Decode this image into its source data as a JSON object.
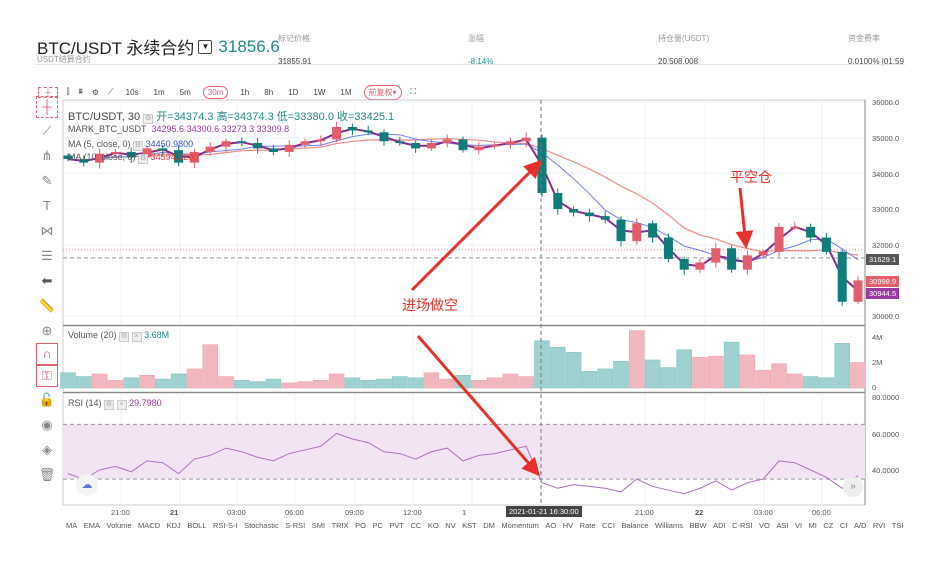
{
  "header": {
    "symbol": "BTC/USDT 永续合约",
    "last_price": "31856.6",
    "subtitle": "USDT结算合约",
    "stats": [
      {
        "label": "标记价格",
        "value": "31855.91"
      },
      {
        "label": "涨幅",
        "value": "-8.14%"
      },
      {
        "label": "持仓量(USDT)",
        "value": "20,508,008"
      },
      {
        "label": "资金费率",
        "value": "0.0100% |01:59"
      }
    ]
  },
  "toolbar": {
    "timeframes": [
      "10s",
      "1m",
      "5m",
      "30m",
      "1h",
      "8h",
      "1D",
      "1W",
      "1M"
    ],
    "active": "30m",
    "adjust": "前复权▾"
  },
  "legend": {
    "symbol": "BTC/USDT, 30",
    "ohlc": "开=34374.3  高=34374.3  低=33380.0  收=33425.1",
    "mark": "MARK_BTC_USDT",
    "mark_vals": "34295.6  34300.6  33273.3  33309.8",
    "ma5": "MA (5, close, 0)",
    "ma5_val": "34450.9800",
    "ma10": "MA (10, close, 0)",
    "ma10_val": "34594.3200",
    "volume": "Volume (20)",
    "volume_val": "3.68M",
    "rsi": "RSI (14)",
    "rsi_val": "29.7980"
  },
  "price_axis": [
    "36000.0",
    "35000.0",
    "34000.0",
    "33000.0",
    "32000.0",
    "30000.0"
  ],
  "price_labels": {
    "mark": "31629.1",
    "last": "30998.9",
    "ma": "30944.5"
  },
  "volume_axis": [
    "4M",
    "2M",
    "0"
  ],
  "rsi_axis": [
    "80.0000",
    "60.0000",
    "40.0000"
  ],
  "time_axis": [
    "21:00",
    "21",
    "03:00",
    "06:00",
    "09:00",
    "12:00",
    "1",
    "21:00",
    "22",
    "03:00",
    "06:00"
  ],
  "crosshair_time": "2021-01-21 16:30:00",
  "annotations": {
    "entry": "进场做空",
    "exit": "平空仓"
  },
  "indicators": [
    "MA",
    "EMA",
    "Volume",
    "MACD",
    "KDJ",
    "BOLL",
    "RSI-S-I",
    "Stochastic",
    "S-RSI",
    "SMI",
    "TRIX",
    "PO",
    "PC",
    "PVT",
    "CC",
    "KO",
    "NV",
    "KST",
    "DM",
    "Momentum",
    "AO",
    "HV",
    "Rate",
    "CCI",
    "Balance",
    "Williams",
    "BBW",
    "ADI",
    "C-RSI",
    "VO",
    "ASI",
    "VI",
    "MI",
    "CZ",
    "CI",
    "A/D",
    "RVI",
    "TSI"
  ],
  "colors": {
    "up": "#e35d6a",
    "down": "#0e7c78",
    "vol_up": "#f2b6be",
    "vol_down": "#9fd1d1",
    "mark_line": "#8a2a90",
    "ma5": "#6d7ef0",
    "ma10": "#f08a8a",
    "rsi": "#b070c0",
    "accent": "#1f8a8a"
  },
  "chart_data": {
    "type": "candlestick",
    "closes": [
      34400,
      34300,
      34550,
      34600,
      34450,
      34700,
      34650,
      34300,
      34600,
      34750,
      34900,
      34850,
      34700,
      34600,
      34800,
      34900,
      34950,
      35300,
      35200,
      35150,
      34900,
      34850,
      34700,
      34850,
      34950,
      34650,
      34750,
      34800,
      34900,
      35000,
      33450,
      33000,
      32900,
      32800,
      32700,
      32100,
      32600,
      32200,
      31600,
      31300,
      31500,
      31900,
      31300,
      31700,
      31800,
      32500,
      32500,
      32200,
      31800,
      30400,
      31000
    ],
    "volumes_m": [
      1.2,
      0.9,
      1.1,
      0.6,
      0.8,
      1.0,
      0.7,
      1.1,
      1.5,
      3.4,
      0.9,
      0.6,
      0.5,
      0.7,
      0.4,
      0.5,
      0.6,
      1.1,
      0.8,
      0.6,
      0.7,
      0.9,
      0.8,
      1.2,
      0.7,
      1.0,
      0.6,
      0.8,
      1.1,
      0.9,
      3.7,
      3.2,
      2.8,
      1.3,
      1.5,
      2.1,
      4.5,
      2.2,
      1.6,
      3.0,
      2.4,
      2.5,
      3.6,
      2.6,
      1.4,
      1.9,
      1.1,
      0.9,
      0.8,
      3.5,
      2.0
    ],
    "rsi": [
      38,
      35,
      40,
      42,
      39,
      45,
      44,
      38,
      46,
      48,
      52,
      50,
      47,
      45,
      49,
      51,
      53,
      60,
      57,
      55,
      50,
      49,
      46,
      50,
      52,
      45,
      48,
      49,
      51,
      53,
      33,
      30,
      32,
      31,
      30,
      28,
      35,
      31,
      29,
      27,
      30,
      34,
      29,
      33,
      35,
      45,
      44,
      40,
      36,
      30,
      37
    ]
  }
}
